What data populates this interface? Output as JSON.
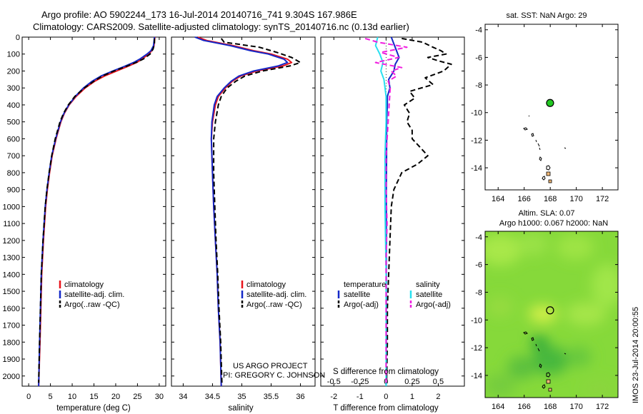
{
  "header": {
    "line1": "Argo profile: AO 5902244_173 16-Jul-2014 20140716_741 9.304S 167.986E",
    "line2": "Climatology: CARS2009. Satellite-adjusted climatology: synTS_20140716.nc (0.13d earlier)"
  },
  "colors": {
    "climatology": "#e8141c",
    "satellite": "#1428c8",
    "argo": "#000000",
    "salinity_satellite": "#28e0f0",
    "salinity_argo": "#f020e0",
    "marker_fill": "#22c822",
    "map_bg": "#86d93a"
  },
  "chart_data": [
    {
      "type": "line",
      "panel": "temperature",
      "xlabel": "temperature (deg C)",
      "xlim": [
        -1.5,
        31.5
      ],
      "xticks": [
        0,
        5,
        10,
        15,
        20,
        25,
        30
      ],
      "ylabel": "depth",
      "ylim": [
        2060,
        0
      ],
      "yticks": [
        0,
        100,
        200,
        300,
        400,
        500,
        600,
        700,
        800,
        900,
        1000,
        1100,
        1200,
        1300,
        1400,
        1500,
        1600,
        1700,
        1800,
        1900,
        2000
      ],
      "legend": [
        "climatology",
        "satellite-adj. clim.",
        "Argo(..raw -QC)"
      ],
      "series": [
        {
          "name": "climatology",
          "style": "solid",
          "color": "climatology",
          "depth": [
            0,
            50,
            80,
            100,
            130,
            150,
            175,
            200,
            230,
            260,
            300,
            350,
            400,
            450,
            500,
            600,
            700,
            800,
            900,
            1000,
            1200,
            1400,
            1600,
            1800,
            2060
          ],
          "values": [
            29.0,
            28.8,
            28.3,
            27.6,
            26.0,
            24.8,
            22.6,
            20.2,
            17.4,
            15.2,
            13.0,
            10.9,
            9.3,
            8.2,
            7.4,
            6.3,
            5.4,
            4.8,
            4.3,
            3.9,
            3.4,
            3.0,
            2.8,
            2.6,
            2.3
          ]
        },
        {
          "name": "satellite-adj. clim.",
          "style": "solid",
          "color": "satellite",
          "depth": [
            0,
            50,
            80,
            100,
            130,
            150,
            175,
            200,
            230,
            260,
            300,
            350,
            400,
            450,
            500,
            600,
            700,
            800,
            900,
            1000,
            1200,
            1400,
            1600,
            1800,
            2060
          ],
          "values": [
            28.9,
            28.7,
            28.1,
            27.2,
            25.5,
            24.1,
            21.8,
            19.3,
            16.6,
            14.6,
            12.6,
            10.7,
            9.2,
            8.1,
            7.3,
            6.2,
            5.3,
            4.7,
            4.2,
            3.8,
            3.3,
            2.9,
            2.7,
            2.5,
            2.3
          ]
        },
        {
          "name": "Argo(..raw -QC)",
          "style": "dashed",
          "color": "argo",
          "depth": [
            8,
            40,
            70,
            100,
            130,
            150,
            175,
            200,
            230,
            260,
            300,
            350,
            400,
            450,
            500,
            600,
            700,
            800,
            900,
            1000,
            1200,
            1400,
            1600,
            1800,
            2040
          ],
          "values": [
            28.9,
            28.9,
            28.6,
            27.9,
            26.3,
            24.6,
            22.2,
            19.6,
            16.9,
            15.0,
            12.8,
            10.6,
            9.1,
            8.0,
            7.2,
            6.1,
            5.3,
            4.7,
            4.2,
            3.8,
            3.3,
            2.9,
            2.7,
            2.5,
            2.3
          ]
        }
      ]
    },
    {
      "type": "line",
      "panel": "salinity",
      "xlabel": "salinity",
      "xlim": [
        33.8,
        36.25
      ],
      "xticks": [
        34,
        34.5,
        35,
        35.5,
        36
      ],
      "ylim": [
        2060,
        0
      ],
      "legend": [
        "climatology",
        "satellite-adj. clim.",
        "Argo(..raw -QC)"
      ],
      "series": [
        {
          "name": "climatology",
          "style": "solid",
          "color": "climatology",
          "depth": [
            0,
            20,
            50,
            80,
            100,
            130,
            150,
            170,
            200,
            230,
            260,
            300,
            350,
            400,
            500,
            600,
            700,
            800,
            1000,
            1200,
            1400,
            1600,
            1800,
            2060
          ],
          "values": [
            34.25,
            34.4,
            34.85,
            35.2,
            35.5,
            35.78,
            35.85,
            35.7,
            35.25,
            34.98,
            34.84,
            34.72,
            34.6,
            34.55,
            34.5,
            34.48,
            34.49,
            34.5,
            34.52,
            34.55,
            34.58,
            34.6,
            34.63,
            34.65
          ]
        },
        {
          "name": "satellite-adj. clim.",
          "style": "solid",
          "color": "satellite",
          "depth": [
            0,
            20,
            50,
            80,
            100,
            130,
            150,
            170,
            200,
            230,
            260,
            300,
            350,
            400,
            500,
            600,
            700,
            800,
            1000,
            1200,
            1400,
            1600,
            1800,
            2060
          ],
          "values": [
            34.2,
            34.35,
            34.8,
            35.15,
            35.45,
            35.72,
            35.78,
            35.62,
            35.2,
            34.95,
            34.82,
            34.7,
            34.58,
            34.53,
            34.49,
            34.48,
            34.49,
            34.5,
            34.52,
            34.55,
            34.58,
            34.6,
            34.63,
            34.65
          ]
        },
        {
          "name": "Argo(..raw -QC)",
          "style": "dashed",
          "color": "argo",
          "depth": [
            8,
            30,
            60,
            90,
            120,
            150,
            170,
            200,
            230,
            260,
            300,
            350,
            400,
            500,
            600,
            700,
            800,
            1000,
            1200,
            1400,
            1600,
            1800,
            2040
          ],
          "values": [
            34.65,
            34.7,
            35.3,
            35.6,
            35.85,
            36.0,
            35.82,
            35.35,
            35.05,
            34.9,
            34.75,
            34.65,
            34.6,
            34.55,
            34.52,
            34.52,
            34.52,
            34.54,
            34.56,
            34.59,
            34.61,
            34.64,
            34.66
          ]
        }
      ]
    },
    {
      "type": "line",
      "panel": "difference",
      "xlabel_bottom": "T difference from climatology",
      "xlabel_top": "S difference from climatology",
      "xlim": [
        -2.5,
        3.0
      ],
      "xticks": [
        -2,
        -1,
        0,
        1,
        2
      ],
      "xticks_top": [
        -0.5,
        -0.25,
        0,
        0.25,
        0.5
      ],
      "xticklabels_top": [
        "-0.5",
        "-0.25",
        "0",
        "0.25",
        "0.5"
      ],
      "ylim": [
        2060,
        0
      ],
      "legend_left": {
        "title": "temperature",
        "items": [
          "satellite",
          "Argo(-adj)"
        ]
      },
      "legend_right": {
        "title": "salinity",
        "items": [
          "satellite",
          "Argo(-adj)"
        ]
      },
      "series": [
        {
          "name": "temperature satellite",
          "style": "solid",
          "color": "satellite",
          "depth": [
            0,
            40,
            80,
            120,
            160,
            200,
            250,
            300,
            350,
            400,
            500,
            700,
            900,
            1200,
            1500,
            1800,
            2060
          ],
          "values": [
            0.2,
            0.3,
            0.4,
            0.5,
            0.35,
            0.3,
            0.1,
            0.15,
            0.05,
            0.05,
            0.02,
            0.02,
            0.01,
            0.01,
            0.01,
            0.01,
            0.0
          ]
        },
        {
          "name": "temperature Argo(-adj)",
          "style": "dashed",
          "color": "argo",
          "depth": [
            8,
            30,
            60,
            80,
            100,
            120,
            140,
            160,
            200,
            240,
            280,
            320,
            360,
            400,
            450,
            500,
            550,
            600,
            650,
            700,
            750,
            800,
            900,
            1000,
            1200,
            1400,
            1600,
            1800,
            2040
          ],
          "values": [
            0.6,
            1.4,
            1.8,
            2.1,
            2.3,
            1.6,
            2.0,
            2.5,
            2.2,
            1.5,
            1.8,
            0.9,
            1.1,
            0.7,
            0.9,
            0.8,
            1.0,
            1.0,
            1.3,
            1.6,
            1.2,
            0.6,
            0.3,
            0.2,
            0.15,
            0.1,
            0.05,
            0.05,
            0.02
          ]
        },
        {
          "name": "salinity satellite",
          "style": "solid",
          "color": "salinity_satellite",
          "depth": [
            0,
            50,
            100,
            150,
            200,
            250,
            300,
            350,
            400,
            500,
            700,
            1000,
            1400,
            1800,
            2060
          ],
          "values": [
            -0.08,
            -0.1,
            -0.06,
            -0.03,
            -0.05,
            -0.02,
            -0.01,
            0.0,
            0.0,
            0.0,
            -0.01,
            -0.01,
            0.0,
            0.0,
            0.0
          ]
        },
        {
          "name": "salinity Argo(-adj)",
          "style": "dashed",
          "color": "salinity_argo",
          "depth": [
            8,
            30,
            60,
            90,
            120,
            150,
            180,
            200,
            230,
            260,
            300,
            400,
            500,
            700,
            900,
            1100,
            1300,
            1600,
            2040
          ],
          "values": [
            -0.2,
            -0.08,
            0.2,
            -0.05,
            0.12,
            -0.1,
            0.15,
            0.05,
            0.1,
            0.02,
            0.04,
            0.03,
            0.02,
            0.0,
            0.0,
            0.01,
            0.0,
            0.0,
            0.0
          ]
        }
      ]
    },
    {
      "type": "scatter",
      "panel": "sat-sst-map",
      "title": "sat. SST: NaN Argo: 29",
      "xlim": [
        163,
        173.2
      ],
      "ylim": [
        -15.6,
        -3.6
      ],
      "xticks": [
        164,
        166,
        168,
        170,
        172
      ],
      "yticks": [
        -4,
        -6,
        -8,
        -10,
        -12,
        -14
      ],
      "argo_position": {
        "lon": 167.986,
        "lat": -9.304
      }
    },
    {
      "type": "heatmap",
      "panel": "altimetry-map",
      "title_line1": "Altim. SLA: 0.07",
      "title_line2": "Argo h1000: 0.067 h2000: NaN",
      "xlim": [
        163,
        173.2
      ],
      "ylim": [
        -15.6,
        -3.6
      ],
      "xticks": [
        164,
        166,
        168,
        170,
        172
      ],
      "yticks": [
        -4,
        -6,
        -8,
        -10,
        -12,
        -14
      ],
      "argo_position": {
        "lon": 167.986,
        "lat": -9.304
      }
    }
  ],
  "footer": {
    "project_line1": "US ARGO PROJECT",
    "project_line2": "PI: GREGORY C. JOHNSON",
    "stamp": "IMOS 23-Jul-2014 20:00:55"
  }
}
